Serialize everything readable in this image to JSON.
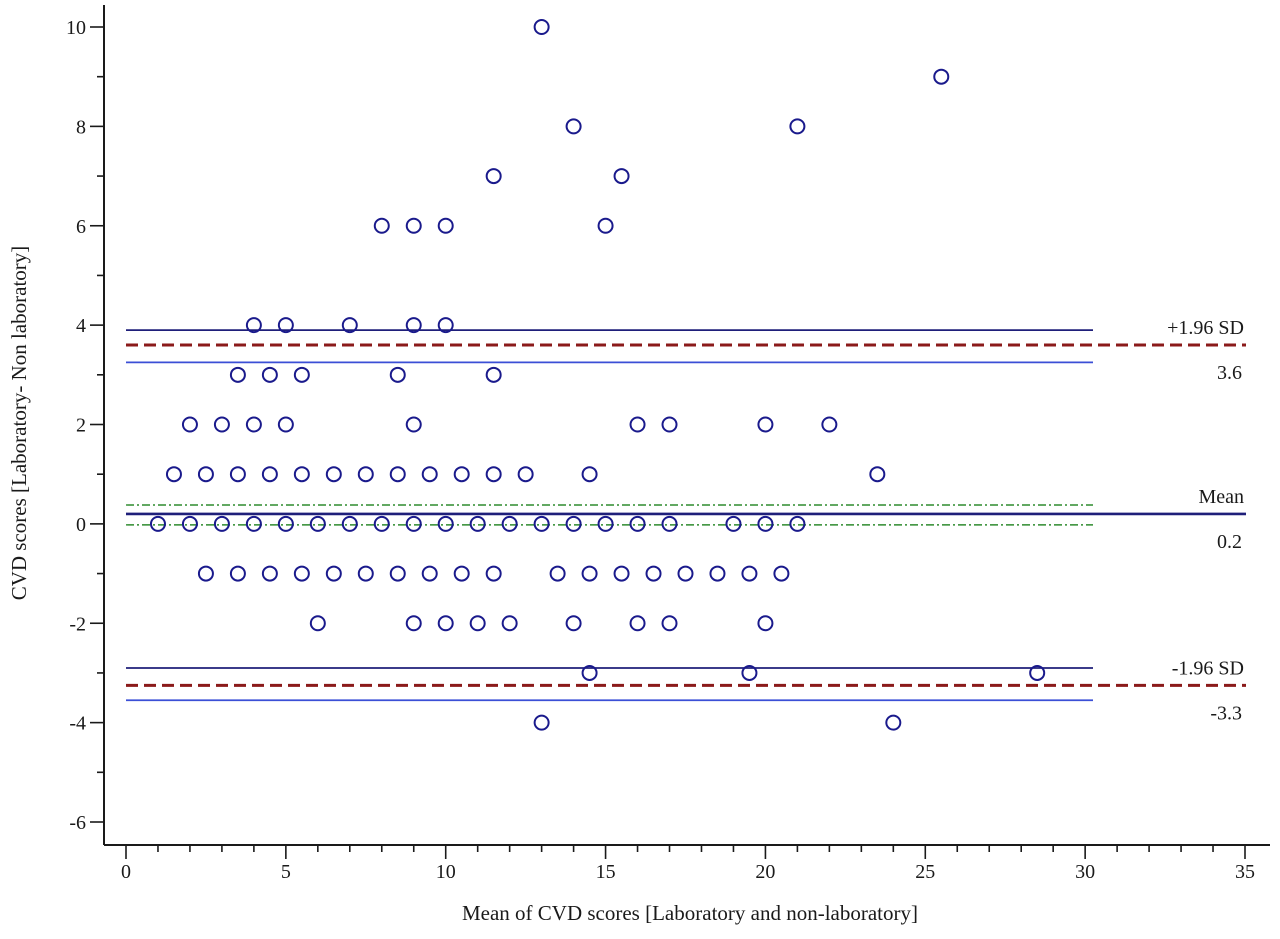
{
  "chart_data": {
    "type": "scatter",
    "title": "",
    "xlabel": "Mean of CVD scores [Laboratory and non-laboratory]",
    "ylabel": "CVD scores [Laboratory- Non laboratory]",
    "xlim": [
      0,
      35
    ],
    "ylim": [
      -6,
      10
    ],
    "x_ticks": [
      0,
      5,
      10,
      15,
      20,
      25,
      30,
      35
    ],
    "y_ticks": [
      -6,
      -4,
      -2,
      0,
      2,
      4,
      6,
      8,
      10
    ],
    "grid": false,
    "points": [
      [
        13,
        10
      ],
      [
        25.5,
        9
      ],
      [
        14,
        8
      ],
      [
        21,
        8
      ],
      [
        11.5,
        7
      ],
      [
        15.5,
        7
      ],
      [
        8,
        6
      ],
      [
        9,
        6
      ],
      [
        10,
        6
      ],
      [
        15,
        6
      ],
      [
        4,
        4
      ],
      [
        5,
        4
      ],
      [
        7,
        4
      ],
      [
        9,
        4
      ],
      [
        10,
        4
      ],
      [
        3.5,
        3
      ],
      [
        4.5,
        3
      ],
      [
        5.5,
        3
      ],
      [
        8.5,
        3
      ],
      [
        11.5,
        3
      ],
      [
        2,
        2
      ],
      [
        3,
        2
      ],
      [
        4,
        2
      ],
      [
        5,
        2
      ],
      [
        9,
        2
      ],
      [
        16,
        2
      ],
      [
        17,
        2
      ],
      [
        20,
        2
      ],
      [
        22,
        2
      ],
      [
        1.5,
        1
      ],
      [
        2.5,
        1
      ],
      [
        3.5,
        1
      ],
      [
        4.5,
        1
      ],
      [
        5.5,
        1
      ],
      [
        6.5,
        1
      ],
      [
        7.5,
        1
      ],
      [
        8.5,
        1
      ],
      [
        9.5,
        1
      ],
      [
        10.5,
        1
      ],
      [
        11.5,
        1
      ],
      [
        12.5,
        1
      ],
      [
        14.5,
        1
      ],
      [
        23.5,
        1
      ],
      [
        1,
        0
      ],
      [
        2,
        0
      ],
      [
        3,
        0
      ],
      [
        4,
        0
      ],
      [
        5,
        0
      ],
      [
        6,
        0
      ],
      [
        7,
        0
      ],
      [
        8,
        0
      ],
      [
        9,
        0
      ],
      [
        10,
        0
      ],
      [
        11,
        0
      ],
      [
        12,
        0
      ],
      [
        13,
        0
      ],
      [
        14,
        0
      ],
      [
        15,
        0
      ],
      [
        16,
        0
      ],
      [
        17,
        0
      ],
      [
        19,
        0
      ],
      [
        20,
        0
      ],
      [
        21,
        0
      ],
      [
        2.5,
        -1
      ],
      [
        3.5,
        -1
      ],
      [
        4.5,
        -1
      ],
      [
        5.5,
        -1
      ],
      [
        6.5,
        -1
      ],
      [
        7.5,
        -1
      ],
      [
        8.5,
        -1
      ],
      [
        9.5,
        -1
      ],
      [
        10.5,
        -1
      ],
      [
        11.5,
        -1
      ],
      [
        13.5,
        -1
      ],
      [
        14.5,
        -1
      ],
      [
        15.5,
        -1
      ],
      [
        16.5,
        -1
      ],
      [
        17.5,
        -1
      ],
      [
        18.5,
        -1
      ],
      [
        19.5,
        -1
      ],
      [
        20.5,
        -1
      ],
      [
        6,
        -2
      ],
      [
        9,
        -2
      ],
      [
        10,
        -2
      ],
      [
        11,
        -2
      ],
      [
        12,
        -2
      ],
      [
        14,
        -2
      ],
      [
        16,
        -2
      ],
      [
        17,
        -2
      ],
      [
        20,
        -2
      ],
      [
        14.5,
        -3
      ],
      [
        19.5,
        -3
      ],
      [
        28.5,
        -3
      ],
      [
        13,
        -4
      ],
      [
        24,
        -4
      ]
    ],
    "reference_lines": [
      {
        "name": "mean",
        "y": 0.2,
        "style": "solid",
        "color": "#1f1f7a",
        "label_top": "Mean",
        "label_bottom": "0.2"
      },
      {
        "name": "mean-ci-upper",
        "y": 0.38,
        "style": "dashdot",
        "color": "#2e8b2e"
      },
      {
        "name": "mean-ci-lower",
        "y": -0.02,
        "style": "dashdot",
        "color": "#2e8b2e"
      },
      {
        "name": "upper-loa",
        "y": 3.6,
        "style": "dashed",
        "color": "#8b1a1a",
        "label_top": "+1.96 SD",
        "label_bottom": "3.6"
      },
      {
        "name": "upper-loa-ci-upper",
        "y": 3.9,
        "style": "solid",
        "color": "#1f1f7a"
      },
      {
        "name": "upper-loa-ci-lower",
        "y": 3.25,
        "style": "solid",
        "color": "#3b4fd6"
      },
      {
        "name": "lower-loa",
        "y": -3.25,
        "style": "dashed",
        "color": "#8b1a1a",
        "label_top": "-1.96 SD",
        "label_bottom": "-3.3"
      },
      {
        "name": "lower-loa-ci-upper",
        "y": -2.9,
        "style": "solid",
        "color": "#1f1f7a"
      },
      {
        "name": "lower-loa-ci-lower",
        "y": -3.55,
        "style": "solid",
        "color": "#3b4fd6"
      }
    ],
    "colors": {
      "marker": "#1a1a8c",
      "axis": "#1a1a1a"
    }
  }
}
